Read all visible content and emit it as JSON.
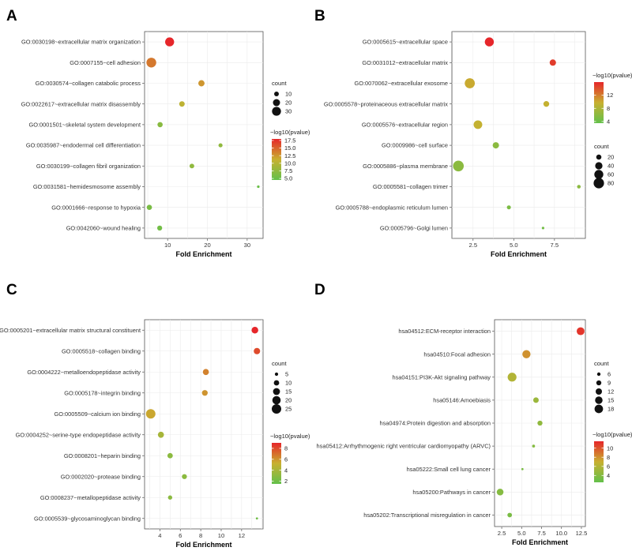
{
  "chart_data": [
    {
      "panel": "A",
      "type": "scatter",
      "xlabel": "Fold Enrichment",
      "xlim": [
        4.2,
        34
      ],
      "xticks": [
        10,
        20,
        30
      ],
      "categories": [
        "GO:0030198~extracellular matrix organization",
        "GO:0007155~cell adhesion",
        "GO:0030574~collagen catabolic process",
        "GO:0022617~extracellular matrix disassembly",
        "GO:0001501~skeletal system development",
        "GO:0035987~endodermal cell differentiation",
        "GO:0030199~collagen fibril organization",
        "GO:0031581~hemidesmosome assembly",
        "GO:0001666~response to hypoxia",
        "GO:0042060~wound healing"
      ],
      "x": [
        10.5,
        5.9,
        18.5,
        13.6,
        8.1,
        23.3,
        16.1,
        32.8,
        5.4,
        8.0
      ],
      "count": [
        30,
        35,
        16,
        13,
        12,
        8,
        10,
        4,
        12,
        11
      ],
      "pvalue": [
        18,
        14,
        12.5,
        10.5,
        7,
        7.5,
        7.5,
        5,
        6,
        5.5
      ],
      "size_legend": {
        "title": "count",
        "values": [
          10,
          20,
          30
        ],
        "labels": [
          "10",
          "20",
          "30"
        ]
      },
      "color_legend": {
        "title": "−log10(pvalue)",
        "min": 4.5,
        "max": 18,
        "ticks": [
          17.5,
          15.0,
          12.5,
          10.0,
          7.5,
          5.0
        ],
        "labels": [
          "17.5",
          "15.0",
          "12.5",
          "10.0",
          "7.5",
          "5.0"
        ]
      },
      "legend_order": "size-first"
    },
    {
      "panel": "B",
      "type": "scatter",
      "xlabel": "Fold Enrichment",
      "xlim": [
        1.2,
        9.4
      ],
      "xticks": [
        2.5,
        5.0,
        7.5
      ],
      "tick_labels": [
        "2.5",
        "5.0",
        "7.5"
      ],
      "categories": [
        "GO:0005615~extracellular space",
        "GO:0031012~extracellular matrix",
        "GO:0070062~extracellular exosome",
        "GO:0005578~proteinaceous extracellular matrix",
        "GO:0005576~extracellular region",
        "GO:0009986~cell surface",
        "GO:0005886~plasma membrane",
        "GO:0005581~collagen trimer",
        "GO:0005788~endoplasmic reticulum lumen",
        "GO:0005796~Golgi lumen"
      ],
      "x": [
        3.5,
        7.4,
        2.3,
        7.0,
        2.8,
        3.9,
        1.6,
        9.0,
        4.7,
        6.8
      ],
      "count": [
        60,
        30,
        75,
        25,
        55,
        30,
        85,
        10,
        12,
        5
      ],
      "pvalue": [
        16,
        15,
        10,
        9.5,
        9.5,
        6,
        6,
        6,
        5,
        4.5
      ],
      "size_legend": {
        "title": "count",
        "values": [
          20,
          40,
          60,
          80
        ],
        "labels": [
          "20",
          "40",
          "60",
          "80"
        ]
      },
      "color_legend": {
        "title": "−log10(pvalue)",
        "min": 3.5,
        "max": 16,
        "ticks": [
          12,
          8,
          4
        ],
        "labels": [
          "12",
          "8",
          "4"
        ]
      },
      "legend_order": "color-first"
    },
    {
      "panel": "C",
      "type": "scatter",
      "xlabel": "Fold Enrichment",
      "xlim": [
        2.5,
        14.1
      ],
      "xticks": [
        4,
        6,
        8,
        10,
        12
      ],
      "tick_labels": [
        "4",
        "6",
        "8",
        "10",
        "12"
      ],
      "categories": [
        "GO:0005201~extracellular matrix structural constituent",
        "GO:0005518~collagen binding",
        "GO:0004222~metalloendopeptidase activity",
        "GO:0005178~integrin binding",
        "GO:0005509~calcium ion binding",
        "GO:0004252~serine-type endopeptidase activity",
        "GO:0008201~heparin binding",
        "GO:0002020~protease binding",
        "GO:0008237~metallopeptidase activity",
        "GO:0005539~glycosaminoglycan binding"
      ],
      "x": [
        13.3,
        13.5,
        8.5,
        8.4,
        3.1,
        4.1,
        5.0,
        6.4,
        5.0,
        13.5
      ],
      "count": [
        14,
        13,
        12,
        11,
        25,
        12,
        10,
        9,
        7,
        3
      ],
      "pvalue": [
        9,
        8,
        6.5,
        6,
        5.5,
        4,
        3,
        3,
        3,
        2
      ],
      "size_legend": {
        "title": "count",
        "values": [
          5,
          10,
          15,
          20,
          25
        ],
        "labels": [
          "5",
          "10",
          "15",
          "20",
          "25"
        ]
      },
      "color_legend": {
        "title": "−log10(pvalue)",
        "min": 1.5,
        "max": 9,
        "ticks": [
          8,
          6,
          4,
          2
        ],
        "labels": [
          "8",
          "6",
          "4",
          "2"
        ]
      },
      "legend_order": "size-first"
    },
    {
      "panel": "D",
      "type": "scatter",
      "xlabel": "Fold Enrichment",
      "xlim": [
        1.6,
        13.0
      ],
      "xticks": [
        2.5,
        5.0,
        7.5,
        10.0,
        12.5
      ],
      "tick_labels": [
        "2.5",
        "5.0",
        "7.5",
        "10.0",
        "12.5"
      ],
      "categories": [
        "hsa04512:ECM-receptor interaction",
        "hsa04510:Focal adhesion",
        "hsa04151:PI3K-Akt signaling pathway",
        "hsa05146:Amoebiasis",
        "hsa04974:Protein digestion and absorption",
        "hsa05412:Arrhythmogenic right ventricular cardiomyopathy (ARVC)",
        "hsa05222:Small cell lung cancer",
        "hsa05200:Pathways in cancer",
        "hsa05202:Transcriptional misregulation in cancer"
      ],
      "x": [
        12.4,
        5.6,
        3.8,
        6.8,
        7.3,
        6.5,
        5.1,
        2.3,
        3.5
      ],
      "count": [
        16,
        17,
        19,
        10,
        9,
        5,
        4,
        13,
        8
      ],
      "pvalue": [
        11,
        8,
        6,
        5,
        4.5,
        4,
        3.5,
        4,
        3.5
      ],
      "size_legend": {
        "title": "count",
        "values": [
          6,
          9,
          12,
          15,
          18
        ],
        "labels": [
          "6",
          "9",
          "12",
          "15",
          "18"
        ]
      },
      "color_legend": {
        "title": "−log10(pvalue)",
        "min": 2.5,
        "max": 11.5,
        "ticks": [
          10,
          8,
          6,
          4
        ],
        "labels": [
          "10",
          "8",
          "6",
          "4"
        ]
      },
      "legend_order": "size-first"
    }
  ]
}
